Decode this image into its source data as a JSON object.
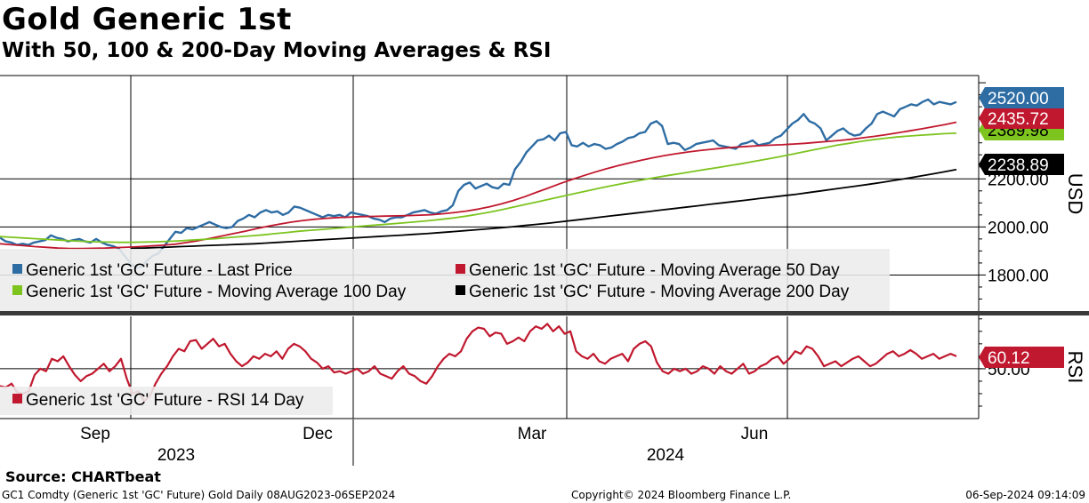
{
  "title": "Gold Generic 1st",
  "subtitle": "With 50, 100 & 200-Day Moving Averages & RSI",
  "source": "Source: CHARTbeat",
  "footer": {
    "left": "GC1 Comdty (Generic 1st 'GC' Future) Gold  Daily 08AUG2023-06SEP2024",
    "center": "Copyright© 2024 Bloomberg Finance L.P.",
    "right": "06-Sep-2024 09:14:09"
  },
  "colors": {
    "price": "#2e6da4",
    "ma50": "#c0182e",
    "ma100": "#7dc41f",
    "ma200": "#000000",
    "rsi": "#c0182e",
    "legend_bg": "#ececec"
  },
  "chart_data": [
    {
      "type": "line",
      "title": "Gold Generic 1st",
      "ylabel": "USD",
      "ylim": [
        1650,
        2630
      ],
      "yticks": [
        1800,
        2000,
        2200
      ],
      "ytick_labels": [
        "1800.00",
        "2000.00",
        "2200.00"
      ],
      "x_month_labels": [
        "Sep",
        "Dec",
        "Mar",
        "Jun"
      ],
      "x_year_labels": [
        "2023",
        "2024"
      ],
      "grid": true,
      "legend_position": "bottom-left",
      "series": [
        {
          "name": "Generic 1st 'GC' Future - Last Price",
          "key": "price",
          "last_value_label": "2520.00",
          "values": [
            1955,
            1940,
            1935,
            1925,
            1930,
            1925,
            1935,
            1940,
            1945,
            1965,
            1955,
            1950,
            1940,
            1945,
            1950,
            1940,
            1935,
            1950,
            1935,
            1925,
            1920,
            1910,
            1880,
            1850,
            1830,
            1835,
            1860,
            1880,
            1890,
            1920,
            1950,
            1980,
            1975,
            1995,
            1990,
            2000,
            2010,
            2020,
            2010,
            2000,
            1995,
            2000,
            2025,
            2035,
            2050,
            2040,
            2060,
            2070,
            2060,
            2065,
            2050,
            2060,
            2085,
            2080,
            2070,
            2060,
            2050,
            2040,
            2050,
            2045,
            2050,
            2040,
            2060,
            2055,
            2050,
            2045,
            2035,
            2030,
            2020,
            2035,
            2040,
            2040,
            2050,
            2060,
            2065,
            2070,
            2060,
            2055,
            2065,
            2070,
            2090,
            2150,
            2175,
            2185,
            2160,
            2170,
            2180,
            2165,
            2160,
            2180,
            2175,
            2240,
            2270,
            2310,
            2335,
            2360,
            2365,
            2380,
            2360,
            2390,
            2395,
            2340,
            2335,
            2350,
            2335,
            2345,
            2340,
            2325,
            2330,
            2345,
            2355,
            2370,
            2375,
            2390,
            2395,
            2430,
            2440,
            2420,
            2345,
            2350,
            2345,
            2320,
            2330,
            2345,
            2350,
            2355,
            2360,
            2340,
            2335,
            2330,
            2325,
            2345,
            2350,
            2360,
            2340,
            2345,
            2350,
            2370,
            2380,
            2405,
            2430,
            2445,
            2470,
            2440,
            2430,
            2410,
            2360,
            2380,
            2400,
            2410,
            2390,
            2380,
            2385,
            2410,
            2430,
            2470,
            2480,
            2470,
            2460,
            2490,
            2500,
            2510,
            2505,
            2520,
            2530,
            2510,
            2520,
            2515,
            2510,
            2520
          ]
        },
        {
          "name": "Generic 1st 'GC' Future - Moving Average 50 Day",
          "key": "ma50",
          "last_value_label": "2435.72",
          "values": [
            1930,
            1926,
            1922,
            1918,
            1915,
            1912,
            1910,
            1910,
            1911,
            1912,
            1914,
            1916,
            1918,
            1921,
            1924,
            1928,
            1935,
            1943,
            1952,
            1962,
            1972,
            1982,
            1993,
            2003,
            2012,
            2020,
            2027,
            2032,
            2036,
            2039,
            2041,
            2043,
            2044,
            2045,
            2046,
            2047,
            2049,
            2051,
            2055,
            2060,
            2066,
            2074,
            2084,
            2096,
            2110,
            2126,
            2144,
            2162,
            2180,
            2197,
            2213,
            2228,
            2242,
            2255,
            2267,
            2278,
            2288,
            2297,
            2305,
            2312,
            2318,
            2323,
            2328,
            2332,
            2335,
            2338,
            2340,
            2342,
            2345,
            2348,
            2352,
            2356,
            2360,
            2365,
            2371,
            2377,
            2384,
            2392,
            2400,
            2408,
            2417,
            2426,
            2436
          ]
        },
        {
          "name": "Generic 1st 'GC' Future - Moving Average 100 Day",
          "key": "ma100",
          "last_value_label": "2389.98",
          "values": [
            1960,
            1957,
            1954,
            1951,
            1948,
            1945,
            1942,
            1940,
            1938,
            1937,
            1936,
            1936,
            1937,
            1938,
            1940,
            1942,
            1945,
            1948,
            1951,
            1955,
            1959,
            1963,
            1967,
            1972,
            1977,
            1982,
            1986,
            1990,
            1994,
            1998,
            2002,
            2006,
            2010,
            2014,
            2018,
            2022,
            2027,
            2032,
            2038,
            2045,
            2053,
            2062,
            2072,
            2083,
            2094,
            2105,
            2116,
            2127,
            2138,
            2149,
            2160,
            2170,
            2180,
            2189,
            2198,
            2207,
            2215,
            2223,
            2231,
            2239,
            2247,
            2255,
            2263,
            2272,
            2281,
            2290,
            2300,
            2310,
            2320,
            2330,
            2340,
            2348,
            2356,
            2363,
            2369,
            2374,
            2378,
            2382,
            2385,
            2388,
            2390
          ]
        },
        {
          "name": "Generic 1st 'GC' Future - Moving Average 200 Day",
          "key": "ma200",
          "last_value_label": "2238.89",
          "values": [
            1910,
            1912,
            1914,
            1916,
            1918,
            1920,
            1922,
            1924,
            1926,
            1928,
            1930,
            1933,
            1936,
            1939,
            1942,
            1945,
            1948,
            1951,
            1954,
            1957,
            1960,
            1963,
            1966,
            1969,
            1972,
            1976,
            1980,
            1984,
            1988,
            1992,
            1996,
            2001,
            2006,
            2011,
            2016,
            2022,
            2028,
            2034,
            2040,
            2046,
            2052,
            2058,
            2064,
            2070,
            2076,
            2082,
            2088,
            2094,
            2100,
            2106,
            2112,
            2118,
            2124,
            2130,
            2136,
            2143,
            2150,
            2157,
            2164,
            2171,
            2178,
            2186,
            2194,
            2202,
            2211,
            2220,
            2229,
            2239
          ]
        }
      ]
    },
    {
      "type": "line",
      "ylabel": "RSI",
      "ylim": [
        10,
        92
      ],
      "yticks": [
        50
      ],
      "ytick_labels": [
        "50.00"
      ],
      "legend_position": "bottom-left",
      "series": [
        {
          "name": "Generic 1st 'GC' Future - RSI 14 Day",
          "key": "rsi",
          "last_value_label": "60.12",
          "values": [
            36,
            35,
            38,
            31,
            30,
            32,
            45,
            50,
            48,
            58,
            56,
            60,
            52,
            45,
            40,
            44,
            46,
            50,
            54,
            48,
            52,
            58,
            42,
            30,
            32,
            24,
            28,
            38,
            46,
            52,
            60,
            66,
            64,
            72,
            73,
            66,
            70,
            74,
            68,
            70,
            62,
            56,
            52,
            55,
            60,
            58,
            62,
            60,
            64,
            58,
            66,
            70,
            68,
            64,
            58,
            55,
            50,
            52,
            47,
            48,
            46,
            48,
            50,
            46,
            48,
            52,
            46,
            44,
            42,
            48,
            52,
            46,
            44,
            40,
            38,
            44,
            52,
            58,
            62,
            60,
            64,
            74,
            80,
            83,
            82,
            76,
            79,
            78,
            70,
            72,
            75,
            72,
            80,
            84,
            82,
            86,
            80,
            84,
            78,
            80,
            64,
            60,
            58,
            62,
            56,
            54,
            58,
            60,
            62,
            56,
            66,
            70,
            72,
            68,
            55,
            48,
            46,
            50,
            48,
            50,
            46,
            48,
            52,
            50,
            46,
            52,
            48,
            46,
            50,
            54,
            46,
            48,
            52,
            54,
            58,
            60,
            54,
            58,
            64,
            62,
            68,
            66,
            60,
            52,
            54,
            56,
            52,
            55,
            58,
            60,
            56,
            52,
            54,
            58,
            62,
            64,
            60,
            62,
            65,
            62,
            58,
            60,
            62,
            58,
            60,
            62,
            60
          ]
        }
      ]
    }
  ]
}
